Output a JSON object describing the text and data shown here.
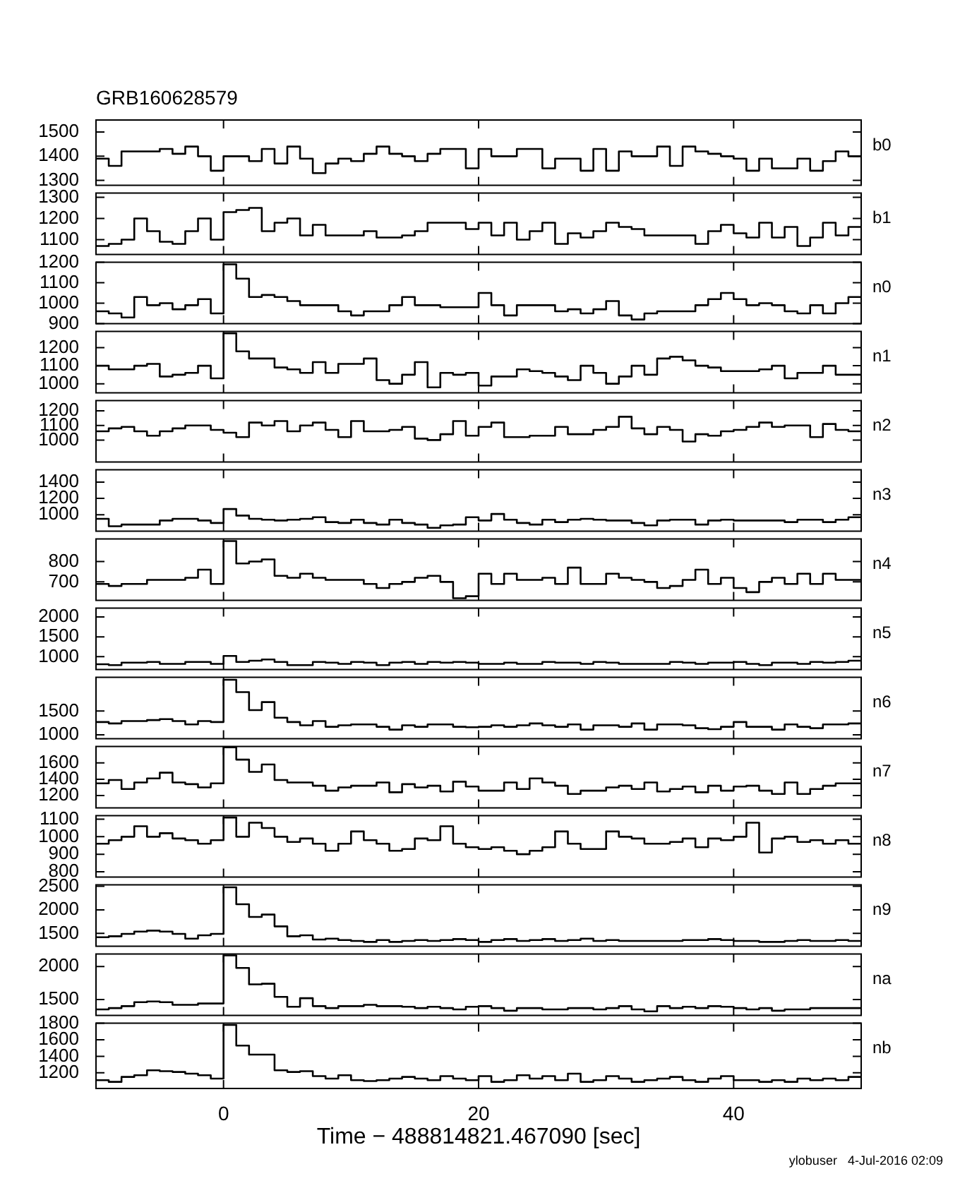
{
  "chart_data": [
    {
      "type": "histogram",
      "title": "GRB160628579",
      "annotations": [
        "b0"
      ],
      "tick_labels": "y",
      "color": "#000000",
      "xlim": [
        -10,
        50
      ],
      "xticks": [
        0,
        20,
        40
      ],
      "ylim": [
        1280,
        1550
      ],
      "yticks": [
        1300,
        1400,
        1500
      ],
      "bins": [
        -10,
        -9,
        -8,
        -7,
        -6,
        -5,
        -4,
        -3,
        -2,
        -1,
        0,
        1,
        2,
        3,
        4,
        5,
        6,
        7,
        8,
        9,
        10,
        11,
        12,
        13,
        14,
        15,
        16,
        17,
        18,
        19,
        20,
        21,
        22,
        23,
        24,
        25,
        26,
        27,
        28,
        29,
        30,
        31,
        32,
        33,
        34,
        35,
        36,
        37,
        38,
        39,
        40,
        41,
        42,
        43,
        44,
        45,
        46,
        47,
        48,
        49,
        50
      ],
      "values": [
        1390,
        1360,
        1420,
        1420,
        1420,
        1430,
        1410,
        1440,
        1400,
        1340,
        1400,
        1400,
        1380,
        1430,
        1370,
        1440,
        1390,
        1330,
        1370,
        1390,
        1380,
        1410,
        1440,
        1410,
        1400,
        1380,
        1410,
        1430,
        1430,
        1350,
        1430,
        1400,
        1400,
        1430,
        1430,
        1350,
        1390,
        1390,
        1340,
        1430,
        1340,
        1420,
        1400,
        1400,
        1440,
        1360,
        1440,
        1420,
        1410,
        1400,
        1390,
        1340,
        1390,
        1350,
        1350,
        1390,
        1340,
        1380,
        1420,
        1400
      ]
    },
    {
      "type": "histogram",
      "annotations": [
        "b1"
      ],
      "tick_labels": "y",
      "color": "#000000",
      "xlim": [
        -10,
        50
      ],
      "xticks": [
        0,
        20,
        40
      ],
      "ylim": [
        1030,
        1320
      ],
      "yticks": [
        1100,
        1200,
        1300
      ],
      "bins": [
        -10,
        -9,
        -8,
        -7,
        -6,
        -5,
        -4,
        -3,
        -2,
        -1,
        0,
        1,
        2,
        3,
        4,
        5,
        6,
        7,
        8,
        9,
        10,
        11,
        12,
        13,
        14,
        15,
        16,
        17,
        18,
        19,
        20,
        21,
        22,
        23,
        24,
        25,
        26,
        27,
        28,
        29,
        30,
        31,
        32,
        33,
        34,
        35,
        36,
        37,
        38,
        39,
        40,
        41,
        42,
        43,
        44,
        45,
        46,
        47,
        48,
        49,
        50
      ],
      "values": [
        1070,
        1080,
        1100,
        1200,
        1140,
        1090,
        1080,
        1140,
        1200,
        1100,
        1230,
        1240,
        1250,
        1140,
        1180,
        1200,
        1120,
        1170,
        1120,
        1120,
        1120,
        1140,
        1110,
        1110,
        1120,
        1140,
        1180,
        1180,
        1180,
        1150,
        1180,
        1120,
        1180,
        1100,
        1140,
        1180,
        1080,
        1130,
        1110,
        1140,
        1180,
        1160,
        1150,
        1120,
        1120,
        1120,
        1120,
        1080,
        1140,
        1170,
        1130,
        1110,
        1180,
        1110,
        1160,
        1070,
        1110,
        1180,
        1120,
        1160
      ]
    },
    {
      "type": "histogram",
      "annotations": [
        "n0"
      ],
      "tick_labels": "y",
      "color": "#000000",
      "xlim": [
        -10,
        50
      ],
      "xticks": [
        0,
        20,
        40
      ],
      "ylim": [
        900,
        1200
      ],
      "yticks": [
        900,
        1000,
        1100,
        1200
      ],
      "bins": [
        -10,
        -9,
        -8,
        -7,
        -6,
        -5,
        -4,
        -3,
        -2,
        -1,
        0,
        1,
        2,
        3,
        4,
        5,
        6,
        7,
        8,
        9,
        10,
        11,
        12,
        13,
        14,
        15,
        16,
        17,
        18,
        19,
        20,
        21,
        22,
        23,
        24,
        25,
        26,
        27,
        28,
        29,
        30,
        31,
        32,
        33,
        34,
        35,
        36,
        37,
        38,
        39,
        40,
        41,
        42,
        43,
        44,
        45,
        46,
        47,
        48,
        49,
        50
      ],
      "values": [
        960,
        950,
        930,
        1030,
        990,
        1000,
        970,
        990,
        1020,
        950,
        1190,
        1120,
        1030,
        1040,
        1030,
        1010,
        990,
        990,
        990,
        960,
        940,
        960,
        960,
        990,
        1030,
        990,
        990,
        980,
        980,
        980,
        1050,
        990,
        940,
        990,
        990,
        990,
        960,
        970,
        950,
        970,
        1010,
        940,
        920,
        950,
        960,
        960,
        960,
        990,
        1020,
        1050,
        1020,
        990,
        1000,
        990,
        960,
        950,
        990,
        950,
        1000,
        1030
      ]
    },
    {
      "type": "histogram",
      "annotations": [
        "n1"
      ],
      "tick_labels": "y",
      "color": "#000000",
      "xlim": [
        -10,
        50
      ],
      "xticks": [
        0,
        20,
        40
      ],
      "ylim": [
        950,
        1290
      ],
      "yticks": [
        1000,
        1100,
        1200
      ],
      "bins": [
        -10,
        -9,
        -8,
        -7,
        -6,
        -5,
        -4,
        -3,
        -2,
        -1,
        0,
        1,
        2,
        3,
        4,
        5,
        6,
        7,
        8,
        9,
        10,
        11,
        12,
        13,
        14,
        15,
        16,
        17,
        18,
        19,
        20,
        21,
        22,
        23,
        24,
        25,
        26,
        27,
        28,
        29,
        30,
        31,
        32,
        33,
        34,
        35,
        36,
        37,
        38,
        39,
        40,
        41,
        42,
        43,
        44,
        45,
        46,
        47,
        48,
        49,
        50
      ],
      "values": [
        1100,
        1080,
        1080,
        1100,
        1110,
        1040,
        1050,
        1060,
        1100,
        1030,
        1280,
        1180,
        1140,
        1140,
        1090,
        1080,
        1060,
        1120,
        1060,
        1110,
        1110,
        1140,
        1020,
        1000,
        1050,
        1120,
        980,
        1060,
        1050,
        1060,
        990,
        1040,
        1040,
        1080,
        1070,
        1060,
        1040,
        1020,
        1100,
        1060,
        1000,
        1040,
        1100,
        1050,
        1140,
        1150,
        1130,
        1100,
        1090,
        1070,
        1070,
        1070,
        1080,
        1100,
        1030,
        1060,
        1060,
        1100,
        1050,
        1050
      ]
    },
    {
      "type": "histogram",
      "annotations": [
        "n2"
      ],
      "tick_labels": "y",
      "color": "#000000",
      "xlim": [
        -10,
        50
      ],
      "xticks": [
        0,
        20,
        40
      ],
      "ylim": [
        850,
        1270
      ],
      "yticks": [
        1000,
        1100,
        1200
      ],
      "bins": [
        -10,
        -9,
        -8,
        -7,
        -6,
        -5,
        -4,
        -3,
        -2,
        -1,
        0,
        1,
        2,
        3,
        4,
        5,
        6,
        7,
        8,
        9,
        10,
        11,
        12,
        13,
        14,
        15,
        16,
        17,
        18,
        19,
        20,
        21,
        22,
        23,
        24,
        25,
        26,
        27,
        28,
        29,
        30,
        31,
        32,
        33,
        34,
        35,
        36,
        37,
        38,
        39,
        40,
        41,
        42,
        43,
        44,
        45,
        46,
        47,
        48,
        49,
        50
      ],
      "values": [
        1060,
        1080,
        1090,
        1060,
        1030,
        1060,
        1080,
        1100,
        1100,
        1070,
        1050,
        1020,
        1120,
        1100,
        1130,
        1060,
        1100,
        1120,
        1070,
        1020,
        1130,
        1060,
        1060,
        1070,
        1090,
        1010,
        1000,
        1040,
        1130,
        1030,
        1090,
        1120,
        1020,
        1020,
        1030,
        1030,
        1090,
        1040,
        1040,
        1070,
        1090,
        1160,
        1080,
        1040,
        1090,
        1070,
        990,
        1040,
        1030,
        1060,
        1070,
        1090,
        1120,
        1090,
        1100,
        1100,
        1020,
        1110,
        1070,
        1060
      ]
    },
    {
      "type": "histogram",
      "annotations": [
        "n3"
      ],
      "tick_labels": "y",
      "color": "#000000",
      "xlim": [
        -10,
        50
      ],
      "xticks": [
        0,
        20,
        40
      ],
      "ylim": [
        800,
        1550
      ],
      "yticks": [
        1000,
        1200,
        1400
      ],
      "bins": [
        -10,
        -9,
        -8,
        -7,
        -6,
        -5,
        -4,
        -3,
        -2,
        -1,
        0,
        1,
        2,
        3,
        4,
        5,
        6,
        7,
        8,
        9,
        10,
        11,
        12,
        13,
        14,
        15,
        16,
        17,
        18,
        19,
        20,
        21,
        22,
        23,
        24,
        25,
        26,
        27,
        28,
        29,
        30,
        31,
        32,
        33,
        34,
        35,
        36,
        37,
        38,
        39,
        40,
        41,
        42,
        43,
        44,
        45,
        46,
        47,
        48,
        49,
        50
      ],
      "values": [
        950,
        860,
        880,
        880,
        880,
        930,
        950,
        950,
        930,
        900,
        1070,
        990,
        950,
        940,
        930,
        940,
        950,
        970,
        910,
        900,
        940,
        900,
        880,
        940,
        900,
        880,
        840,
        870,
        880,
        970,
        930,
        1010,
        940,
        900,
        880,
        940,
        910,
        940,
        950,
        940,
        930,
        930,
        900,
        870,
        930,
        940,
        940,
        880,
        930,
        940,
        930,
        930,
        930,
        930,
        910,
        940,
        940,
        910,
        940,
        970
      ]
    },
    {
      "type": "histogram",
      "annotations": [
        "n4"
      ],
      "tick_labels": "y",
      "color": "#000000",
      "xlim": [
        -10,
        50
      ],
      "xticks": [
        0,
        20,
        40
      ],
      "ylim": [
        610,
        910
      ],
      "yticks": [
        700,
        800
      ],
      "bins": [
        -10,
        -9,
        -8,
        -7,
        -6,
        -5,
        -4,
        -3,
        -2,
        -1,
        0,
        1,
        2,
        3,
        4,
        5,
        6,
        7,
        8,
        9,
        10,
        11,
        12,
        13,
        14,
        15,
        16,
        17,
        18,
        19,
        20,
        21,
        22,
        23,
        24,
        25,
        26,
        27,
        28,
        29,
        30,
        31,
        32,
        33,
        34,
        35,
        36,
        37,
        38,
        39,
        40,
        41,
        42,
        43,
        44,
        45,
        46,
        47,
        48,
        49,
        50
      ],
      "values": [
        690,
        680,
        690,
        690,
        710,
        710,
        710,
        720,
        760,
        690,
        900,
        790,
        800,
        810,
        730,
        720,
        740,
        720,
        710,
        710,
        710,
        690,
        670,
        690,
        700,
        720,
        730,
        700,
        620,
        630,
        740,
        690,
        740,
        710,
        710,
        720,
        690,
        770,
        690,
        690,
        740,
        720,
        710,
        700,
        670,
        680,
        710,
        760,
        690,
        720,
        670,
        650,
        700,
        720,
        690,
        740,
        690,
        740,
        710,
        710
      ]
    },
    {
      "type": "histogram",
      "annotations": [
        "n5"
      ],
      "tick_labels": "y",
      "color": "#000000",
      "xlim": [
        -10,
        50
      ],
      "xticks": [
        0,
        20,
        40
      ],
      "ylim": [
        680,
        2220
      ],
      "yticks": [
        1000,
        1500,
        2000
      ],
      "bins": [
        -10,
        -9,
        -8,
        -7,
        -6,
        -5,
        -4,
        -3,
        -2,
        -1,
        0,
        1,
        2,
        3,
        4,
        5,
        6,
        7,
        8,
        9,
        10,
        11,
        12,
        13,
        14,
        15,
        16,
        17,
        18,
        19,
        20,
        21,
        22,
        23,
        24,
        25,
        26,
        27,
        28,
        29,
        30,
        31,
        32,
        33,
        34,
        35,
        36,
        37,
        38,
        39,
        40,
        41,
        42,
        43,
        44,
        45,
        46,
        47,
        48,
        49,
        50
      ],
      "values": [
        810,
        790,
        850,
        850,
        870,
        820,
        820,
        870,
        870,
        820,
        1020,
        870,
        900,
        930,
        870,
        790,
        790,
        870,
        850,
        820,
        870,
        850,
        790,
        850,
        870,
        820,
        870,
        850,
        870,
        850,
        820,
        820,
        850,
        820,
        820,
        870,
        850,
        850,
        820,
        870,
        850,
        820,
        820,
        820,
        820,
        870,
        850,
        820,
        850,
        850,
        870,
        820,
        790,
        850,
        850,
        820,
        870,
        850,
        870,
        900
      ]
    },
    {
      "type": "histogram",
      "annotations": [
        "n6"
      ],
      "tick_labels": "y",
      "color": "#000000",
      "xlim": [
        -10,
        50
      ],
      "xticks": [
        0,
        20,
        40
      ],
      "ylim": [
        920,
        2210
      ],
      "yticks": [
        1000,
        1500
      ],
      "bins": [
        -10,
        -9,
        -8,
        -7,
        -6,
        -5,
        -4,
        -3,
        -2,
        -1,
        0,
        1,
        2,
        3,
        4,
        5,
        6,
        7,
        8,
        9,
        10,
        11,
        12,
        13,
        14,
        15,
        16,
        17,
        18,
        19,
        20,
        21,
        22,
        23,
        24,
        25,
        26,
        27,
        28,
        29,
        30,
        31,
        32,
        33,
        34,
        35,
        36,
        37,
        38,
        39,
        40,
        41,
        42,
        43,
        44,
        45,
        46,
        47,
        48,
        49,
        50
      ],
      "values": [
        1270,
        1240,
        1290,
        1290,
        1310,
        1330,
        1290,
        1220,
        1290,
        1270,
        2160,
        1900,
        1520,
        1690,
        1360,
        1270,
        1200,
        1290,
        1170,
        1200,
        1220,
        1220,
        1170,
        1110,
        1200,
        1170,
        1220,
        1220,
        1170,
        1160,
        1170,
        1200,
        1170,
        1200,
        1240,
        1200,
        1170,
        1220,
        1110,
        1200,
        1200,
        1170,
        1240,
        1110,
        1220,
        1220,
        1200,
        1140,
        1120,
        1170,
        1270,
        1170,
        1170,
        1110,
        1220,
        1170,
        1140,
        1220,
        1220,
        1240
      ]
    },
    {
      "type": "histogram",
      "annotations": [
        "n7"
      ],
      "tick_labels": "y",
      "color": "#000000",
      "xlim": [
        -10,
        50
      ],
      "xticks": [
        0,
        20,
        40
      ],
      "ylim": [
        1050,
        1800
      ],
      "yticks": [
        1200,
        1400,
        1600
      ],
      "bins": [
        -10,
        -9,
        -8,
        -7,
        -6,
        -5,
        -4,
        -3,
        -2,
        -1,
        0,
        1,
        2,
        3,
        4,
        5,
        6,
        7,
        8,
        9,
        10,
        11,
        12,
        13,
        14,
        15,
        16,
        17,
        18,
        19,
        20,
        21,
        22,
        23,
        24,
        25,
        26,
        27,
        28,
        29,
        30,
        31,
        32,
        33,
        34,
        35,
        36,
        37,
        38,
        39,
        40,
        41,
        42,
        43,
        44,
        45,
        46,
        47,
        48,
        49,
        50
      ],
      "values": [
        1350,
        1390,
        1280,
        1360,
        1410,
        1480,
        1360,
        1340,
        1300,
        1350,
        1790,
        1640,
        1490,
        1580,
        1390,
        1360,
        1360,
        1320,
        1260,
        1300,
        1320,
        1320,
        1360,
        1240,
        1340,
        1300,
        1320,
        1250,
        1370,
        1310,
        1260,
        1260,
        1360,
        1280,
        1410,
        1360,
        1320,
        1220,
        1260,
        1260,
        1300,
        1320,
        1280,
        1360,
        1250,
        1280,
        1310,
        1240,
        1320,
        1260,
        1310,
        1320,
        1260,
        1220,
        1360,
        1220,
        1280,
        1320,
        1350,
        1350
      ]
    },
    {
      "type": "histogram",
      "annotations": [
        "n8"
      ],
      "tick_labels": "y",
      "color": "#000000",
      "xlim": [
        -10,
        50
      ],
      "xticks": [
        0,
        20,
        40
      ],
      "ylim": [
        770,
        1120
      ],
      "yticks": [
        800,
        900,
        1000,
        1100
      ],
      "bins": [
        -10,
        -9,
        -8,
        -7,
        -6,
        -5,
        -4,
        -3,
        -2,
        -1,
        0,
        1,
        2,
        3,
        4,
        5,
        6,
        7,
        8,
        9,
        10,
        11,
        12,
        13,
        14,
        15,
        16,
        17,
        18,
        19,
        20,
        21,
        22,
        23,
        24,
        25,
        26,
        27,
        28,
        29,
        30,
        31,
        32,
        33,
        34,
        35,
        36,
        37,
        38,
        39,
        40,
        41,
        42,
        43,
        44,
        45,
        46,
        47,
        48,
        49,
        50
      ],
      "values": [
        960,
        980,
        1000,
        1060,
        1000,
        1020,
        990,
        980,
        960,
        980,
        1110,
        1000,
        1080,
        1050,
        1000,
        970,
        990,
        960,
        920,
        960,
        1030,
        980,
        960,
        920,
        930,
        990,
        980,
        1060,
        960,
        940,
        930,
        940,
        920,
        900,
        920,
        940,
        1030,
        960,
        930,
        930,
        1030,
        1000,
        990,
        960,
        960,
        970,
        990,
        940,
        990,
        980,
        1000,
        1080,
        910,
        990,
        1000,
        970,
        980,
        960,
        980,
        960
      ]
    },
    {
      "type": "histogram",
      "annotations": [
        "n9"
      ],
      "tick_labels": "y",
      "color": "#000000",
      "xlim": [
        -10,
        50
      ],
      "xticks": [
        0,
        20,
        40
      ],
      "ylim": [
        1230,
        2530
      ],
      "yticks": [
        1500,
        2000,
        2500
      ],
      "bins": [
        -10,
        -9,
        -8,
        -7,
        -6,
        -5,
        -4,
        -3,
        -2,
        -1,
        0,
        1,
        2,
        3,
        4,
        5,
        6,
        7,
        8,
        9,
        10,
        11,
        12,
        13,
        14,
        15,
        16,
        17,
        18,
        19,
        20,
        21,
        22,
        23,
        24,
        25,
        26,
        27,
        28,
        29,
        30,
        31,
        32,
        33,
        34,
        35,
        36,
        37,
        38,
        39,
        40,
        41,
        42,
        43,
        44,
        45,
        46,
        47,
        48,
        49,
        50
      ],
      "values": [
        1420,
        1440,
        1490,
        1540,
        1560,
        1540,
        1490,
        1390,
        1460,
        1490,
        2480,
        2120,
        1850,
        1900,
        1650,
        1440,
        1460,
        1370,
        1390,
        1360,
        1340,
        1320,
        1360,
        1320,
        1340,
        1360,
        1340,
        1360,
        1380,
        1360,
        1320,
        1360,
        1380,
        1340,
        1360,
        1380,
        1340,
        1360,
        1390,
        1340,
        1360,
        1340,
        1340,
        1340,
        1340,
        1340,
        1360,
        1360,
        1380,
        1360,
        1340,
        1340,
        1320,
        1320,
        1340,
        1360,
        1340,
        1340,
        1360,
        1340
      ]
    },
    {
      "type": "histogram",
      "annotations": [
        "na"
      ],
      "tick_labels": "y",
      "color": "#000000",
      "xlim": [
        -10,
        50
      ],
      "xticks": [
        0,
        20,
        40
      ],
      "ylim": [
        1260,
        2190
      ],
      "yticks": [
        1500,
        2000
      ],
      "bins": [
        -10,
        -9,
        -8,
        -7,
        -6,
        -5,
        -4,
        -3,
        -2,
        -1,
        0,
        1,
        2,
        3,
        4,
        5,
        6,
        7,
        8,
        9,
        10,
        11,
        12,
        13,
        14,
        15,
        16,
        17,
        18,
        19,
        20,
        21,
        22,
        23,
        24,
        25,
        26,
        27,
        28,
        29,
        30,
        31,
        32,
        33,
        34,
        35,
        36,
        37,
        38,
        39,
        40,
        41,
        42,
        43,
        44,
        45,
        46,
        47,
        48,
        49,
        50
      ],
      "values": [
        1350,
        1370,
        1400,
        1460,
        1470,
        1460,
        1420,
        1420,
        1440,
        1440,
        2170,
        1980,
        1730,
        1740,
        1540,
        1390,
        1520,
        1400,
        1370,
        1400,
        1400,
        1420,
        1400,
        1400,
        1390,
        1370,
        1390,
        1370,
        1350,
        1390,
        1400,
        1370,
        1330,
        1370,
        1370,
        1350,
        1350,
        1370,
        1370,
        1350,
        1370,
        1400,
        1350,
        1320,
        1400,
        1370,
        1390,
        1370,
        1400,
        1390,
        1370,
        1350,
        1370,
        1330,
        1350,
        1350,
        1370,
        1370,
        1370,
        1370
      ]
    },
    {
      "type": "histogram",
      "annotations": [
        "nb",
        "ylobuser   4-Jul-2016 02:09"
      ],
      "xlabel": "Time − 488814821.467090 [sec]",
      "color": "#000000",
      "xlim": [
        -10,
        50
      ],
      "xticks": [
        0,
        20,
        40
      ],
      "ylim": [
        1010,
        1800
      ],
      "yticks": [
        1200,
        1400,
        1600,
        1800
      ],
      "bins": [
        -10,
        -9,
        -8,
        -7,
        -6,
        -5,
        -4,
        -3,
        -2,
        -1,
        0,
        1,
        2,
        3,
        4,
        5,
        6,
        7,
        8,
        9,
        10,
        11,
        12,
        13,
        14,
        15,
        16,
        17,
        18,
        19,
        20,
        21,
        22,
        23,
        24,
        25,
        26,
        27,
        28,
        29,
        30,
        31,
        32,
        33,
        34,
        35,
        36,
        37,
        38,
        39,
        40,
        41,
        42,
        43,
        44,
        45,
        46,
        47,
        48,
        49,
        50
      ],
      "values": [
        1110,
        1090,
        1150,
        1170,
        1230,
        1220,
        1210,
        1190,
        1170,
        1130,
        1780,
        1530,
        1420,
        1420,
        1230,
        1210,
        1220,
        1160,
        1130,
        1170,
        1110,
        1100,
        1110,
        1130,
        1150,
        1130,
        1110,
        1160,
        1130,
        1110,
        1160,
        1090,
        1110,
        1170,
        1130,
        1160,
        1110,
        1190,
        1090,
        1110,
        1160,
        1130,
        1090,
        1110,
        1130,
        1150,
        1110,
        1090,
        1130,
        1160,
        1110,
        1110,
        1090,
        1110,
        1090,
        1130,
        1110,
        1130,
        1110,
        1150
      ]
    }
  ]
}
